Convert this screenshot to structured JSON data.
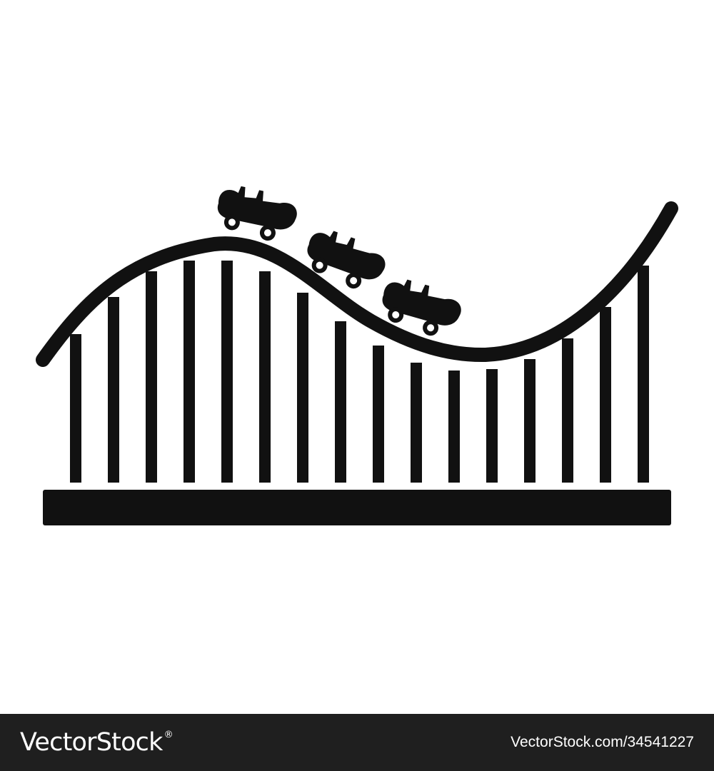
{
  "icon": {
    "name": "roller-coaster-icon",
    "fill": "#111111",
    "background": "#ffffff",
    "support_count": 16,
    "car_count": 3
  },
  "footer": {
    "background": "#1f1f1f",
    "brand": "VectorStock",
    "brand_mark": "®",
    "image_id": "VectorStock.com/34541227"
  }
}
